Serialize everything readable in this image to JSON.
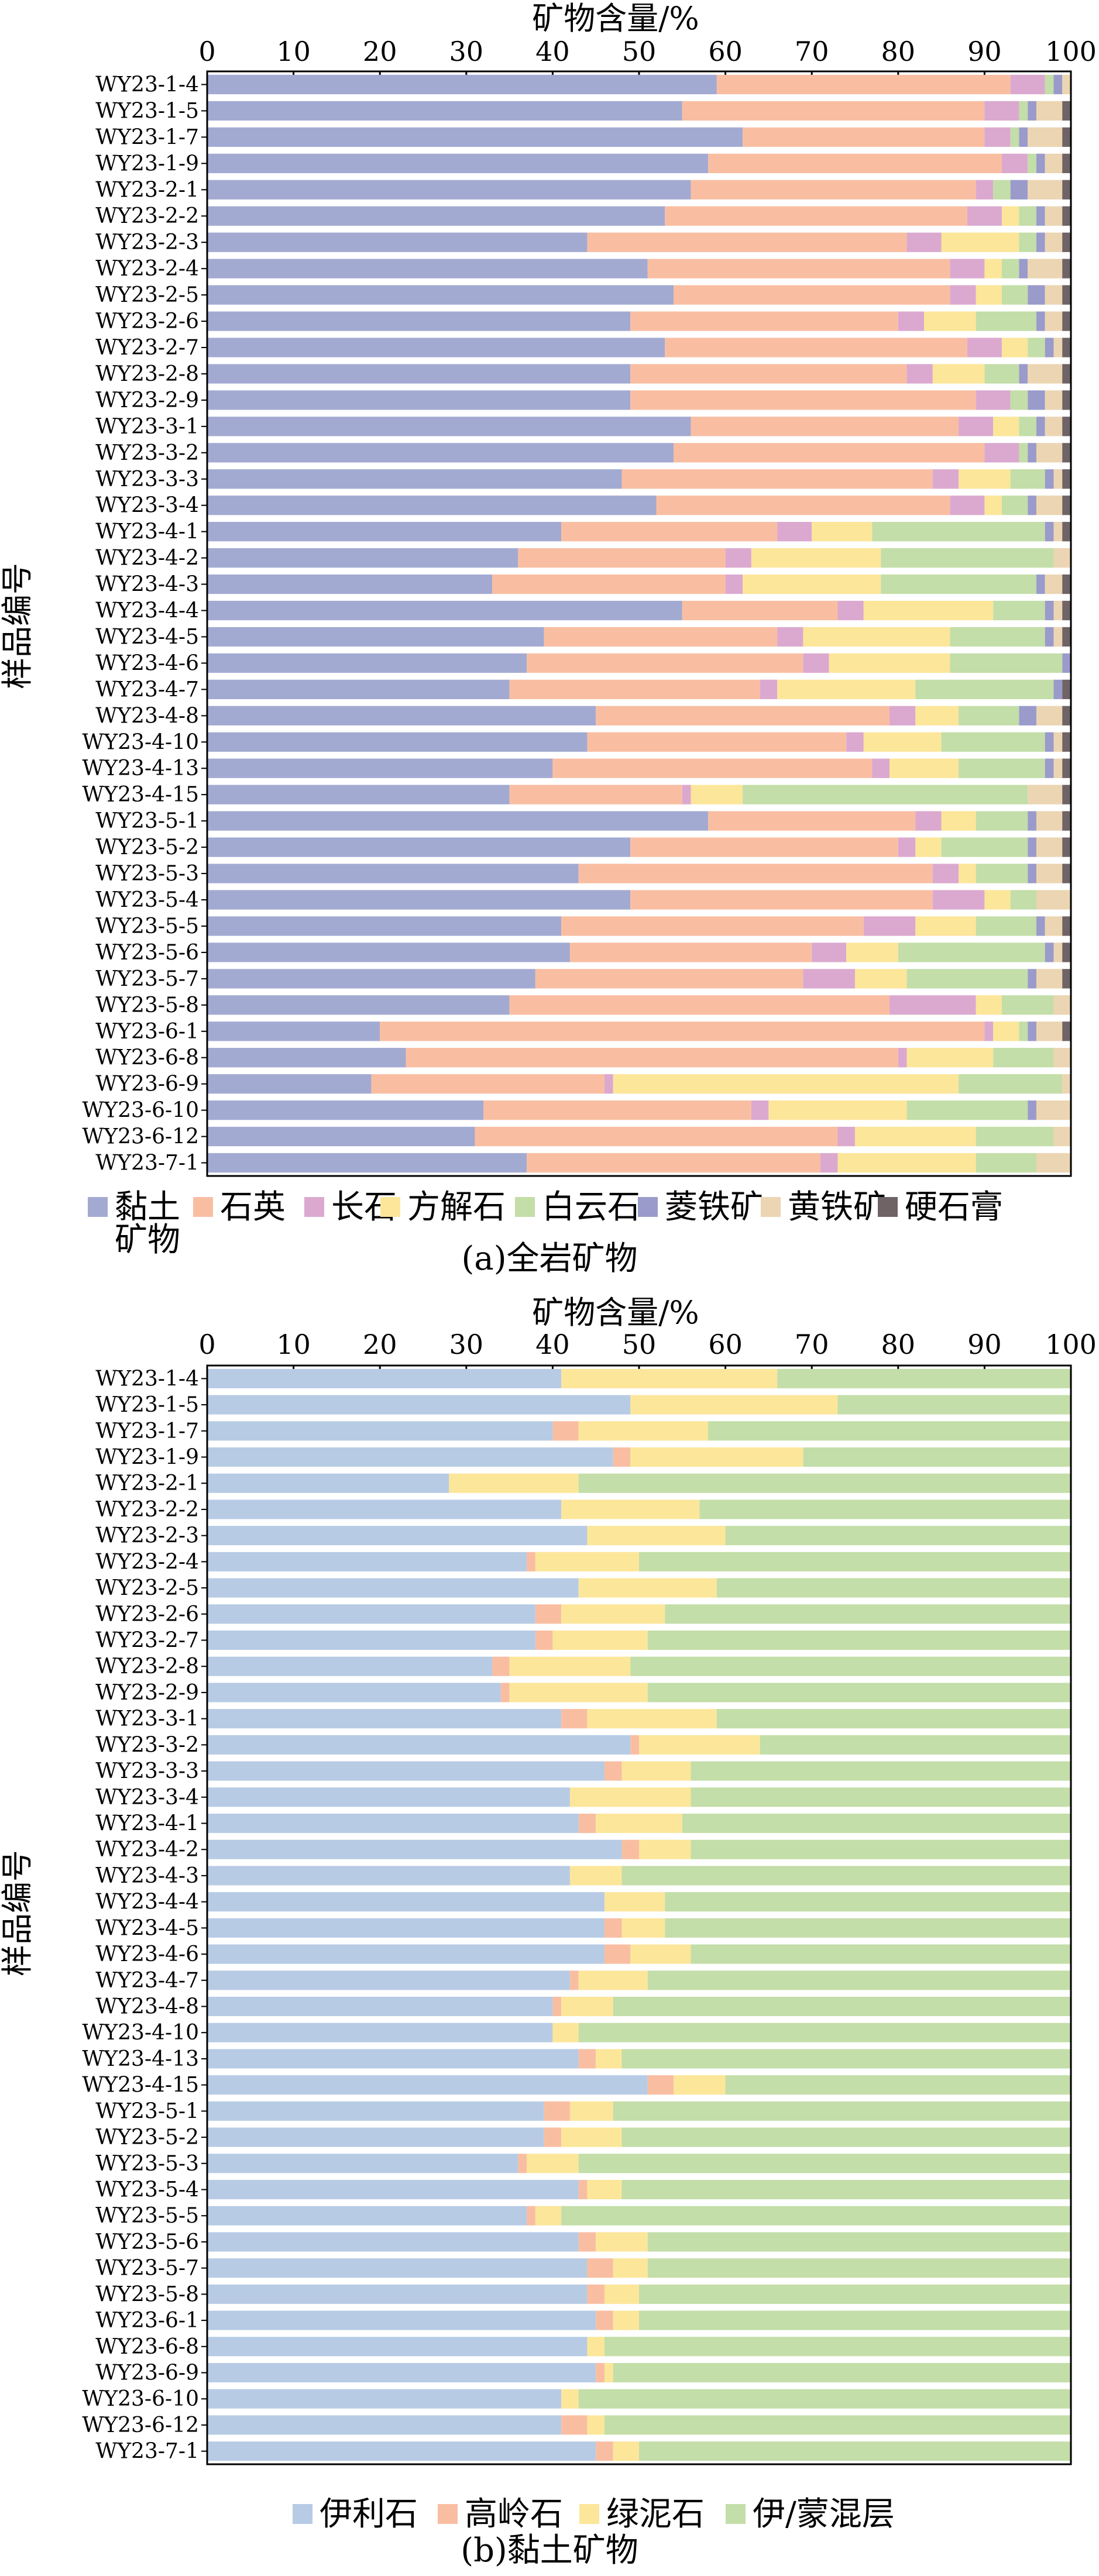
{
  "chart_data": [
    {
      "type": "bar",
      "orientation": "horizontal",
      "stacked": true,
      "title": "",
      "caption": "(a)全岩矿物",
      "xlabel": "矿物含量/%",
      "ylabel": "样品编号",
      "xlim": [
        0,
        100
      ],
      "xticks": [
        "0",
        "10",
        "20",
        "30",
        "40",
        "50",
        "60",
        "70",
        "80",
        "90",
        "100"
      ],
      "legend_position": "bottom",
      "legend_first_line": [
        "黏土"
      ],
      "legend_second_line": [
        "矿物"
      ],
      "categories": [
        "WY23-1-4",
        "WY23-1-5",
        "WY23-1-7",
        "WY23-1-9",
        "WY23-2-1",
        "WY23-2-2",
        "WY23-2-3",
        "WY23-2-4",
        "WY23-2-5",
        "WY23-2-6",
        "WY23-2-7",
        "WY23-2-8",
        "WY23-2-9",
        "WY23-3-1",
        "WY23-3-2",
        "WY23-3-3",
        "WY23-3-4",
        "WY23-4-1",
        "WY23-4-2",
        "WY23-4-3",
        "WY23-4-4",
        "WY23-4-5",
        "WY23-4-6",
        "WY23-4-7",
        "WY23-4-8",
        "WY23-4-10",
        "WY23-4-13",
        "WY23-4-15",
        "WY23-5-1",
        "WY23-5-2",
        "WY23-5-3",
        "WY23-5-4",
        "WY23-5-5",
        "WY23-5-6",
        "WY23-5-7",
        "WY23-5-8",
        "WY23-6-1",
        "WY23-6-8",
        "WY23-6-9",
        "WY23-6-10",
        "WY23-6-12",
        "WY23-7-1"
      ],
      "series": [
        {
          "name": "黏土矿物",
          "color": "#a3aad2",
          "values": [
            59,
            55,
            62,
            58,
            56,
            53,
            44,
            51,
            54,
            49,
            53,
            49,
            49,
            56,
            54,
            48,
            52,
            41,
            36,
            33,
            55,
            39,
            37,
            35,
            45,
            44,
            40,
            35,
            58,
            49,
            43,
            49,
            41,
            42,
            38,
            35,
            20,
            23,
            19,
            32,
            31,
            37
          ]
        },
        {
          "name": "石英",
          "color": "#f9bea2",
          "values": [
            34,
            35,
            28,
            34,
            33,
            35,
            37,
            35,
            32,
            31,
            35,
            32,
            40,
            31,
            36,
            36,
            34,
            25,
            24,
            27,
            18,
            27,
            32,
            29,
            34,
            30,
            37,
            20,
            24,
            31,
            41,
            35,
            35,
            28,
            31,
            44,
            70,
            57,
            27,
            31,
            42,
            34
          ]
        },
        {
          "name": "长石",
          "color": "#dba9cf",
          "values": [
            4,
            4,
            3,
            3,
            2,
            4,
            4,
            4,
            3,
            3,
            4,
            3,
            4,
            4,
            4,
            3,
            4,
            4,
            3,
            2,
            3,
            3,
            3,
            2,
            3,
            2,
            2,
            1,
            3,
            2,
            3,
            6,
            6,
            4,
            6,
            10,
            1,
            1,
            1,
            2,
            2,
            2
          ]
        },
        {
          "name": "方解石",
          "color": "#fce69a",
          "values": [
            0,
            0,
            0,
            0,
            0,
            2,
            9,
            2,
            3,
            6,
            3,
            6,
            0,
            3,
            0,
            6,
            2,
            7,
            15,
            16,
            15,
            17,
            14,
            16,
            5,
            9,
            8,
            6,
            4,
            3,
            2,
            3,
            7,
            6,
            6,
            3,
            3,
            10,
            40,
            16,
            14,
            16
          ]
        },
        {
          "name": "白云石",
          "color": "#c3dea8",
          "values": [
            1,
            1,
            1,
            1,
            2,
            2,
            2,
            2,
            3,
            7,
            2,
            4,
            2,
            2,
            1,
            4,
            3,
            20,
            20,
            18,
            6,
            11,
            13,
            16,
            7,
            12,
            10,
            33,
            6,
            10,
            6,
            3,
            7,
            17,
            14,
            6,
            1,
            7,
            12,
            14,
            9,
            7
          ]
        },
        {
          "name": "菱铁矿",
          "color": "#9a9bcb",
          "values": [
            1,
            1,
            1,
            1,
            2,
            1,
            1,
            1,
            2,
            1,
            1,
            1,
            2,
            1,
            1,
            1,
            1,
            1,
            0,
            1,
            1,
            1,
            1,
            1,
            2,
            1,
            1,
            0,
            1,
            1,
            1,
            0,
            1,
            1,
            1,
            0,
            1,
            0,
            0,
            1,
            0,
            0
          ]
        },
        {
          "name": "黄铁矿",
          "color": "#ecd5b2",
          "values": [
            1,
            3,
            4,
            2,
            4,
            2,
            2,
            4,
            2,
            2,
            1,
            4,
            2,
            2,
            3,
            1,
            3,
            1,
            2,
            2,
            1,
            1,
            0,
            0,
            3,
            1,
            1,
            4,
            3,
            3,
            3,
            4,
            2,
            1,
            3,
            2,
            3,
            2,
            1,
            4,
            2,
            4
          ]
        },
        {
          "name": "硬石膏",
          "color": "#6f6365",
          "values": [
            0,
            1,
            1,
            1,
            1,
            1,
            1,
            1,
            1,
            1,
            1,
            1,
            1,
            1,
            1,
            1,
            1,
            1,
            0,
            1,
            1,
            1,
            0,
            1,
            1,
            1,
            1,
            1,
            1,
            1,
            1,
            0,
            1,
            1,
            1,
            0,
            1,
            0,
            0,
            0,
            0,
            0
          ]
        }
      ]
    },
    {
      "type": "bar",
      "orientation": "horizontal",
      "stacked": true,
      "title": "",
      "caption": "(b)黏土矿物",
      "xlabel": "矿物含量/%",
      "ylabel": "样品编号",
      "xlim": [
        0,
        100
      ],
      "xticks": [
        "0",
        "10",
        "20",
        "30",
        "40",
        "50",
        "60",
        "70",
        "80",
        "90",
        "100"
      ],
      "legend_position": "bottom",
      "categories": [
        "WY23-1-4",
        "WY23-1-5",
        "WY23-1-7",
        "WY23-1-9",
        "WY23-2-1",
        "WY23-2-2",
        "WY23-2-3",
        "WY23-2-4",
        "WY23-2-5",
        "WY23-2-6",
        "WY23-2-7",
        "WY23-2-8",
        "WY23-2-9",
        "WY23-3-1",
        "WY23-3-2",
        "WY23-3-3",
        "WY23-3-4",
        "WY23-4-1",
        "WY23-4-2",
        "WY23-4-3",
        "WY23-4-4",
        "WY23-4-5",
        "WY23-4-6",
        "WY23-4-7",
        "WY23-4-8",
        "WY23-4-10",
        "WY23-4-13",
        "WY23-4-15",
        "WY23-5-1",
        "WY23-5-2",
        "WY23-5-3",
        "WY23-5-4",
        "WY23-5-5",
        "WY23-5-6",
        "WY23-5-7",
        "WY23-5-8",
        "WY23-6-1",
        "WY23-6-8",
        "WY23-6-9",
        "WY23-6-10",
        "WY23-6-12",
        "WY23-7-1"
      ],
      "series": [
        {
          "name": "伊利石",
          "color": "#b7cbe5",
          "values": [
            41,
            49,
            40,
            47,
            28,
            41,
            44,
            37,
            43,
            38,
            38,
            33,
            34,
            41,
            49,
            46,
            42,
            43,
            48,
            42,
            46,
            46,
            46,
            42,
            40,
            40,
            43,
            51,
            39,
            39,
            36,
            43,
            37,
            43,
            44,
            44,
            45,
            44,
            45,
            41,
            41,
            45
          ]
        },
        {
          "name": "高岭石",
          "color": "#f9bea2",
          "values": [
            0,
            0,
            3,
            2,
            0,
            0,
            0,
            1,
            0,
            3,
            2,
            2,
            1,
            3,
            1,
            2,
            0,
            2,
            2,
            0,
            0,
            2,
            3,
            1,
            1,
            0,
            2,
            3,
            3,
            2,
            1,
            1,
            1,
            2,
            3,
            2,
            2,
            0,
            1,
            0,
            3,
            2
          ]
        },
        {
          "name": "绿泥石",
          "color": "#fce69a",
          "values": [
            25,
            24,
            15,
            20,
            15,
            16,
            16,
            12,
            16,
            12,
            11,
            14,
            16,
            15,
            14,
            8,
            14,
            10,
            6,
            6,
            7,
            5,
            7,
            8,
            6,
            3,
            3,
            6,
            5,
            7,
            6,
            4,
            3,
            6,
            4,
            4,
            3,
            2,
            1,
            2,
            2,
            3
          ]
        },
        {
          "name": "伊/蒙混层",
          "color": "#c3dea8",
          "values": [
            34,
            27,
            42,
            31,
            57,
            43,
            40,
            50,
            41,
            47,
            49,
            51,
            49,
            41,
            36,
            44,
            44,
            45,
            44,
            52,
            47,
            47,
            44,
            49,
            53,
            57,
            52,
            40,
            53,
            52,
            57,
            52,
            59,
            49,
            49,
            50,
            50,
            54,
            53,
            57,
            54,
            50
          ]
        }
      ]
    }
  ]
}
